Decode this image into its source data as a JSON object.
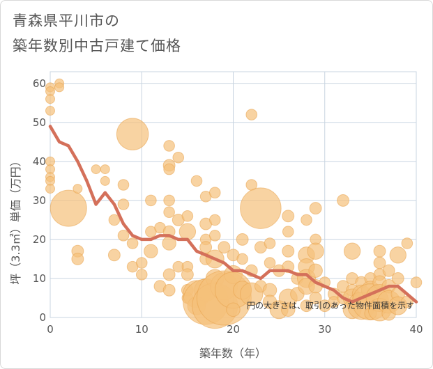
{
  "chart_data": {
    "type": "scatter",
    "title_lines": [
      "青森県平川市の",
      "築年数別中古戸建て価格"
    ],
    "xlabel": "築年数（年）",
    "ylabel": "坪（3.3㎡）単価（万円）",
    "xlim": [
      0,
      40
    ],
    "ylim": [
      0,
      63
    ],
    "x_ticks": [
      0,
      10,
      20,
      30,
      40
    ],
    "y_ticks": [
      0,
      10,
      20,
      30,
      40,
      50,
      60
    ],
    "grid": true,
    "annotation": "円の大きさは、取引のあった物件面積を示す",
    "colors": {
      "bubble": "#f5c07a",
      "bubble_edge": "#e8a24c",
      "line": "#d4705a",
      "grid": "#c8d4e0",
      "background": "#ffffff"
    },
    "bubbles": [
      {
        "x": 0,
        "y": 59,
        "s": 1
      },
      {
        "x": 0,
        "y": 58,
        "s": 1
      },
      {
        "x": 0,
        "y": 56,
        "s": 1
      },
      {
        "x": 0,
        "y": 53,
        "s": 1
      },
      {
        "x": 0,
        "y": 40,
        "s": 1
      },
      {
        "x": 0,
        "y": 38,
        "s": 1
      },
      {
        "x": 0,
        "y": 36,
        "s": 1
      },
      {
        "x": 0,
        "y": 35,
        "s": 1
      },
      {
        "x": 0,
        "y": 33,
        "s": 1
      },
      {
        "x": 1,
        "y": 60,
        "s": 1
      },
      {
        "x": 1,
        "y": 59,
        "s": 1
      },
      {
        "x": 2,
        "y": 28,
        "s": 4
      },
      {
        "x": 3,
        "y": 33,
        "s": 1
      },
      {
        "x": 3,
        "y": 17,
        "s": 1.3
      },
      {
        "x": 3,
        "y": 15,
        "s": 1.3
      },
      {
        "x": 5,
        "y": 38,
        "s": 1
      },
      {
        "x": 6,
        "y": 38,
        "s": 1
      },
      {
        "x": 6,
        "y": 35,
        "s": 1
      },
      {
        "x": 7,
        "y": 25,
        "s": 1.2
      },
      {
        "x": 7,
        "y": 16,
        "s": 1.3
      },
      {
        "x": 8,
        "y": 34,
        "s": 1.2
      },
      {
        "x": 8,
        "y": 29,
        "s": 1.2
      },
      {
        "x": 8,
        "y": 21,
        "s": 1.2
      },
      {
        "x": 9,
        "y": 47,
        "s": 3.5
      },
      {
        "x": 9,
        "y": 19,
        "s": 1.2
      },
      {
        "x": 9,
        "y": 13,
        "s": 1.2
      },
      {
        "x": 10,
        "y": 14,
        "s": 1.2
      },
      {
        "x": 10,
        "y": 11,
        "s": 1.2
      },
      {
        "x": 11,
        "y": 30,
        "s": 1.2
      },
      {
        "x": 11,
        "y": 22,
        "s": 1.2
      },
      {
        "x": 11,
        "y": 17,
        "s": 1.5
      },
      {
        "x": 12,
        "y": 23,
        "s": 1.2
      },
      {
        "x": 12,
        "y": 8,
        "s": 1.3
      },
      {
        "x": 13,
        "y": 44,
        "s": 1.2
      },
      {
        "x": 13,
        "y": 39,
        "s": 1.3
      },
      {
        "x": 13,
        "y": 38,
        "s": 1.2
      },
      {
        "x": 13,
        "y": 30,
        "s": 1.2
      },
      {
        "x": 13,
        "y": 27,
        "s": 1.2
      },
      {
        "x": 13,
        "y": 22,
        "s": 1.3
      },
      {
        "x": 13,
        "y": 19,
        "s": 1.5
      },
      {
        "x": 13,
        "y": 11,
        "s": 1.3
      },
      {
        "x": 13,
        "y": 7,
        "s": 1.3
      },
      {
        "x": 14,
        "y": 41,
        "s": 1.2
      },
      {
        "x": 14,
        "y": 25,
        "s": 1.3
      },
      {
        "x": 14,
        "y": 13,
        "s": 1.2
      },
      {
        "x": 15,
        "y": 26,
        "s": 1.2
      },
      {
        "x": 15,
        "y": 22,
        "s": 1.8
      },
      {
        "x": 15,
        "y": 13,
        "s": 1.2
      },
      {
        "x": 15,
        "y": 11,
        "s": 1.3
      },
      {
        "x": 15,
        "y": 7,
        "s": 1.3
      },
      {
        "x": 15,
        "y": 5,
        "s": 1.2
      },
      {
        "x": 16,
        "y": 35,
        "s": 1.2
      },
      {
        "x": 16,
        "y": 6,
        "s": 3
      },
      {
        "x": 16,
        "y": 3,
        "s": 2
      },
      {
        "x": 17,
        "y": 31,
        "s": 1.2
      },
      {
        "x": 17,
        "y": 24,
        "s": 1.3
      },
      {
        "x": 17,
        "y": 20,
        "s": 1.2
      },
      {
        "x": 17,
        "y": 18,
        "s": 1.3
      },
      {
        "x": 17,
        "y": 15,
        "s": 1.3
      },
      {
        "x": 17,
        "y": 7,
        "s": 2.5
      },
      {
        "x": 17,
        "y": 4,
        "s": 5
      },
      {
        "x": 18,
        "y": 32,
        "s": 1.2
      },
      {
        "x": 18,
        "y": 25,
        "s": 1.2
      },
      {
        "x": 18,
        "y": 21,
        "s": 1.2
      },
      {
        "x": 18,
        "y": 15,
        "s": 2
      },
      {
        "x": 18,
        "y": 10,
        "s": 2
      },
      {
        "x": 18,
        "y": 3,
        "s": 5
      },
      {
        "x": 19,
        "y": 18,
        "s": 1.3
      },
      {
        "x": 19,
        "y": 8,
        "s": 3
      },
      {
        "x": 19,
        "y": 5,
        "s": 6
      },
      {
        "x": 20,
        "y": 16,
        "s": 1.3
      },
      {
        "x": 20,
        "y": 11,
        "s": 2
      },
      {
        "x": 20,
        "y": 7,
        "s": 4
      },
      {
        "x": 20,
        "y": 2,
        "s": 1.5
      },
      {
        "x": 21,
        "y": 20,
        "s": 1.3
      },
      {
        "x": 21,
        "y": 15,
        "s": 1.2
      },
      {
        "x": 21,
        "y": 7,
        "s": 2
      },
      {
        "x": 22,
        "y": 52,
        "s": 1.2
      },
      {
        "x": 22,
        "y": 34,
        "s": 1.2
      },
      {
        "x": 22,
        "y": 12,
        "s": 1.3
      },
      {
        "x": 22,
        "y": 6,
        "s": 2.5
      },
      {
        "x": 23,
        "y": 28,
        "s": 4.5
      },
      {
        "x": 23,
        "y": 18,
        "s": 1.3
      },
      {
        "x": 23,
        "y": 8,
        "s": 1.3
      },
      {
        "x": 24,
        "y": 19,
        "s": 1.2
      },
      {
        "x": 24,
        "y": 14,
        "s": 1.2
      },
      {
        "x": 24,
        "y": 7,
        "s": 1.5
      },
      {
        "x": 24,
        "y": 4,
        "s": 1.5
      },
      {
        "x": 25,
        "y": 12,
        "s": 1.3
      },
      {
        "x": 25,
        "y": 2,
        "s": 2
      },
      {
        "x": 26,
        "y": 26,
        "s": 1.3
      },
      {
        "x": 26,
        "y": 22,
        "s": 1.2
      },
      {
        "x": 26,
        "y": 17,
        "s": 1.3
      },
      {
        "x": 26,
        "y": 13,
        "s": 1.3
      },
      {
        "x": 26,
        "y": 5,
        "s": 2
      },
      {
        "x": 26,
        "y": 2,
        "s": 1.5
      },
      {
        "x": 27,
        "y": 10,
        "s": 1.3
      },
      {
        "x": 27,
        "y": 6,
        "s": 1.5
      },
      {
        "x": 28,
        "y": 25,
        "s": 1.2
      },
      {
        "x": 28,
        "y": 16,
        "s": 1.8
      },
      {
        "x": 28,
        "y": 13,
        "s": 1.8
      },
      {
        "x": 28,
        "y": 10,
        "s": 2
      },
      {
        "x": 28,
        "y": 8,
        "s": 1.8
      },
      {
        "x": 28,
        "y": 3,
        "s": 1.3
      },
      {
        "x": 29,
        "y": 28,
        "s": 1.3
      },
      {
        "x": 29,
        "y": 20,
        "s": 1.2
      },
      {
        "x": 29,
        "y": 17,
        "s": 1.8
      },
      {
        "x": 29,
        "y": 12,
        "s": 1.5
      },
      {
        "x": 29,
        "y": 8,
        "s": 1.5
      },
      {
        "x": 29,
        "y": 5,
        "s": 1.3
      },
      {
        "x": 30,
        "y": 9,
        "s": 1.2
      },
      {
        "x": 30,
        "y": 3,
        "s": 1.3
      },
      {
        "x": 31,
        "y": 6,
        "s": 1.3
      },
      {
        "x": 31,
        "y": 4,
        "s": 1.2
      },
      {
        "x": 32,
        "y": 30,
        "s": 1.3
      },
      {
        "x": 32,
        "y": 8,
        "s": 1.3
      },
      {
        "x": 32,
        "y": 5,
        "s": 1.3
      },
      {
        "x": 33,
        "y": 17,
        "s": 1.8
      },
      {
        "x": 33,
        "y": 10,
        "s": 1.3
      },
      {
        "x": 33,
        "y": 7,
        "s": 1.3
      },
      {
        "x": 33,
        "y": 5,
        "s": 2
      },
      {
        "x": 33,
        "y": 2,
        "s": 2
      },
      {
        "x": 34,
        "y": 9,
        "s": 1.3
      },
      {
        "x": 34,
        "y": 6,
        "s": 2
      },
      {
        "x": 34,
        "y": 3,
        "s": 3
      },
      {
        "x": 35,
        "y": 10,
        "s": 1.3
      },
      {
        "x": 35,
        "y": 7,
        "s": 2
      },
      {
        "x": 35,
        "y": 4,
        "s": 4
      },
      {
        "x": 35,
        "y": 1,
        "s": 1.3
      },
      {
        "x": 36,
        "y": 17,
        "s": 1.3
      },
      {
        "x": 36,
        "y": 14,
        "s": 1.3
      },
      {
        "x": 36,
        "y": 11,
        "s": 1.3
      },
      {
        "x": 36,
        "y": 9,
        "s": 1.5
      },
      {
        "x": 36,
        "y": 5,
        "s": 3
      },
      {
        "x": 36,
        "y": 2,
        "s": 2.5
      },
      {
        "x": 37,
        "y": 12,
        "s": 1.3
      },
      {
        "x": 37,
        "y": 8,
        "s": 1.5
      },
      {
        "x": 37,
        "y": 4,
        "s": 2.5
      },
      {
        "x": 37,
        "y": 1,
        "s": 1.5
      },
      {
        "x": 38,
        "y": 16,
        "s": 1.8
      },
      {
        "x": 38,
        "y": 10,
        "s": 1.3
      },
      {
        "x": 38,
        "y": 6,
        "s": 1.5
      },
      {
        "x": 38,
        "y": 3,
        "s": 2
      },
      {
        "x": 39,
        "y": 19,
        "s": 1.2
      },
      {
        "x": 39,
        "y": 4,
        "s": 1.3
      },
      {
        "x": 40,
        "y": 9,
        "s": 1.2
      }
    ],
    "trend_line": {
      "x": [
        0,
        1,
        2,
        3,
        4,
        5,
        6,
        7,
        8,
        9,
        10,
        11,
        12,
        13,
        14,
        15,
        16,
        17,
        18,
        19,
        20,
        21,
        22,
        23,
        24,
        25,
        26,
        27,
        28,
        29,
        30,
        31,
        32,
        33,
        34,
        35,
        36,
        37,
        38,
        39,
        40
      ],
      "y": [
        49,
        45,
        44,
        40,
        35,
        29,
        32,
        29,
        24,
        21,
        20,
        20,
        21,
        21,
        20,
        20,
        17,
        16,
        15,
        14,
        12,
        12,
        11,
        10,
        12,
        12,
        12,
        11,
        11,
        9,
        8,
        7,
        5,
        4,
        5,
        6,
        7,
        8,
        8,
        6,
        4
      ]
    }
  }
}
